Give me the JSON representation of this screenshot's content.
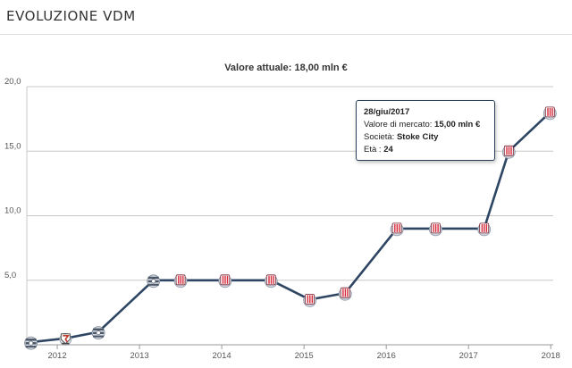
{
  "header": {
    "title": "EVOLUZIONE VDM"
  },
  "subtitle": "Valore attuale: 18,00 mln €",
  "tooltip": {
    "date": "28/giu/2017",
    "market_value_label": "Valore di mercato:",
    "market_value": "15,00 mln €",
    "club_label": "Società:",
    "club": "Stoke City",
    "age_label": "Età :",
    "age": "24"
  },
  "colors": {
    "line": "#2e4663",
    "grid": "#c8c8c8",
    "axis_text": "#555555",
    "tooltip_border": "#2b3e5a",
    "stoke_red": "#d62b3a"
  },
  "chart_data": {
    "type": "line",
    "title": "",
    "xlabel": "",
    "ylabel": "",
    "x_ticks": [
      "2012",
      "2013",
      "2014",
      "2015",
      "2016",
      "2017",
      "2018"
    ],
    "y_ticks": [
      "5,0",
      "10,0",
      "15,0",
      "20,0"
    ],
    "xlim": [
      2011.63,
      2018.03
    ],
    "ylim": [
      0,
      20
    ],
    "grid": "horizontal",
    "legend": "none",
    "series": [
      {
        "points": [
          {
            "x": 2011.68,
            "y": 0.2,
            "club": "Birmingham City",
            "icon": "badge-birmingham"
          },
          {
            "x": 2012.1,
            "y": 0.5,
            "club": "Blackpool",
            "icon": "badge-blackpool"
          },
          {
            "x": 2012.5,
            "y": 1.0,
            "club": "Birmingham City",
            "icon": "badge-birmingham"
          },
          {
            "x": 2013.17,
            "y": 5.0,
            "club": "Birmingham City",
            "icon": "badge-birmingham"
          },
          {
            "x": 2013.5,
            "y": 5.0,
            "club": "Stoke City",
            "icon": "badge-stoke"
          },
          {
            "x": 2014.04,
            "y": 5.0,
            "club": "Stoke City",
            "icon": "badge-stoke"
          },
          {
            "x": 2014.6,
            "y": 5.0,
            "club": "Stoke City",
            "icon": "badge-stoke"
          },
          {
            "x": 2015.07,
            "y": 3.5,
            "club": "Stoke City",
            "icon": "badge-stoke"
          },
          {
            "x": 2015.5,
            "y": 4.0,
            "club": "Stoke City",
            "icon": "badge-stoke"
          },
          {
            "x": 2016.13,
            "y": 9.0,
            "club": "Stoke City",
            "icon": "badge-stoke"
          },
          {
            "x": 2016.6,
            "y": 9.0,
            "club": "Stoke City",
            "icon": "badge-stoke"
          },
          {
            "x": 2017.19,
            "y": 9.0,
            "club": "Stoke City",
            "icon": "badge-stoke"
          },
          {
            "x": 2017.49,
            "y": 15.0,
            "club": "Stoke City",
            "icon": "badge-stoke"
          },
          {
            "x": 2017.99,
            "y": 18.0,
            "club": "Stoke City",
            "icon": "badge-stoke"
          }
        ]
      }
    ]
  }
}
